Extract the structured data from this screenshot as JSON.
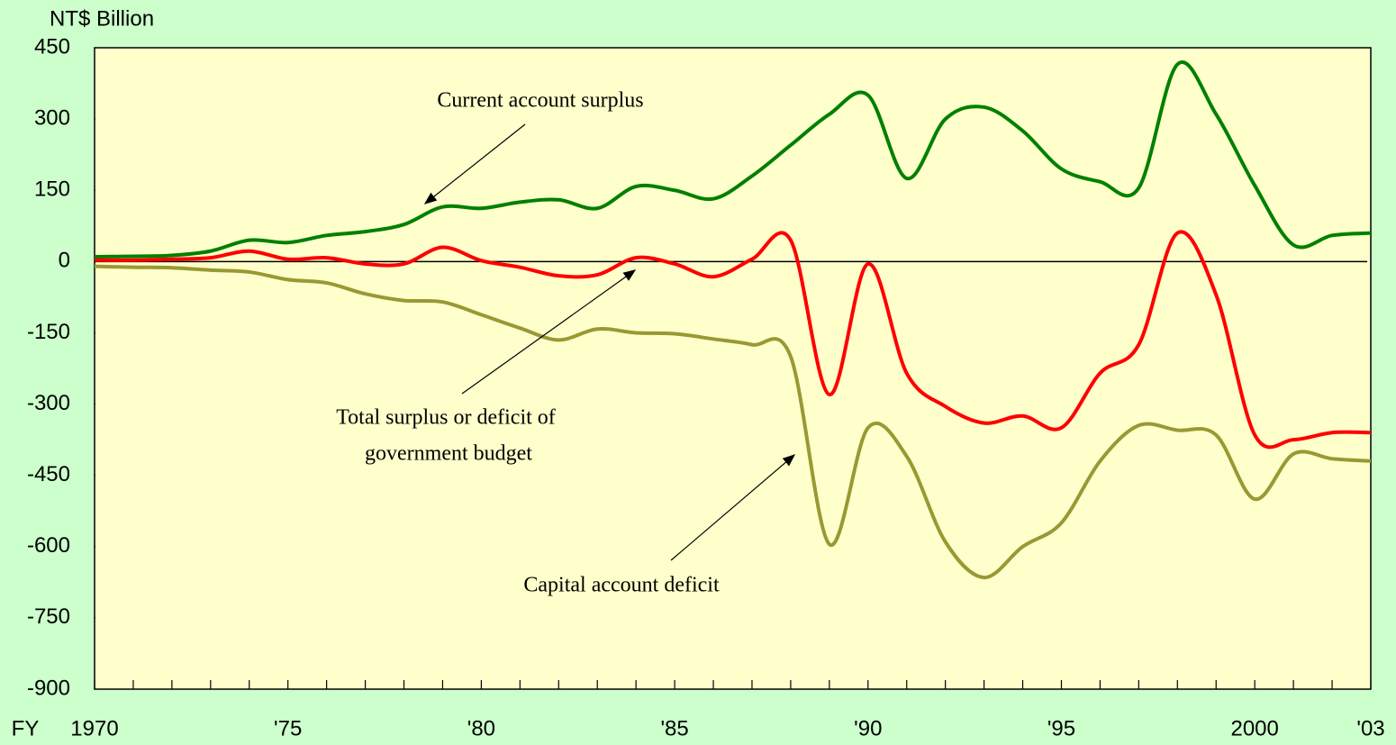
{
  "chart_data": {
    "type": "line",
    "y_label": "NT$ Billion",
    "x_label": "FY",
    "annotations": [
      "Current account surplus",
      "Total surplus or deficit of",
      "government budget",
      "Capital account deficit"
    ],
    "x": [
      1970,
      1971,
      1972,
      1973,
      1974,
      1975,
      1976,
      1977,
      1978,
      1979,
      1980,
      1981,
      1982,
      1983,
      1984,
      1985,
      1986,
      1987,
      1988,
      1989,
      1990,
      1991,
      1992,
      1993,
      1994,
      1995,
      1996,
      1997,
      1998,
      1999,
      2000,
      2001,
      2002,
      2003
    ],
    "series": [
      {
        "color": "#008000",
        "values": [
          10,
          11,
          13,
          22,
          45,
          40,
          55,
          63,
          78,
          115,
          112,
          125,
          130,
          112,
          158,
          150,
          132,
          180,
          245,
          310,
          350,
          175,
          300,
          325,
          275,
          195,
          168,
          155,
          415,
          310,
          160,
          35,
          55,
          60
        ]
      },
      {
        "color": "#ff0000",
        "values": [
          3,
          3,
          5,
          8,
          22,
          5,
          8,
          -5,
          -5,
          30,
          2,
          -12,
          -30,
          -28,
          8,
          -5,
          -32,
          5,
          45,
          -280,
          -5,
          -235,
          -305,
          -340,
          -325,
          -350,
          -235,
          -175,
          60,
          -70,
          -365,
          -375,
          -360,
          -360
        ]
      },
      {
        "color": "#999933",
        "values": [
          -10,
          -12,
          -13,
          -18,
          -22,
          -38,
          -45,
          -68,
          -82,
          -85,
          -112,
          -140,
          -165,
          -142,
          -150,
          -152,
          -163,
          -175,
          -200,
          -595,
          -350,
          -410,
          -590,
          -665,
          -600,
          -550,
          -420,
          -345,
          -355,
          -365,
          -500,
          -405,
          -415,
          -420
        ]
      }
    ],
    "xlim": [
      1970,
      2003
    ],
    "xticks": [
      1970,
      {
        "value": 1975,
        "label": "'75"
      },
      {
        "value": 1980,
        "label": "'80"
      },
      {
        "value": 1985,
        "label": "'85"
      },
      {
        "value": 1990,
        "label": "'90"
      },
      {
        "value": 1995,
        "label": "'95"
      },
      2000,
      {
        "value": 2003,
        "label": "'03"
      }
    ],
    "xticks_minor": [
      1971,
      1972,
      1973,
      1974,
      1976,
      1977,
      1978,
      1979,
      1981,
      1982,
      1983,
      1984,
      1986,
      1987,
      1988,
      1989,
      1991,
      1992,
      1993,
      1994,
      1996,
      1997,
      1998,
      1999,
      2001,
      2002
    ],
    "ylim": [
      -900,
      450
    ],
    "yticks": [
      450,
      300,
      150,
      0,
      -150,
      -300,
      -450,
      -600,
      -750,
      -900
    ],
    "zero_line": true
  }
}
